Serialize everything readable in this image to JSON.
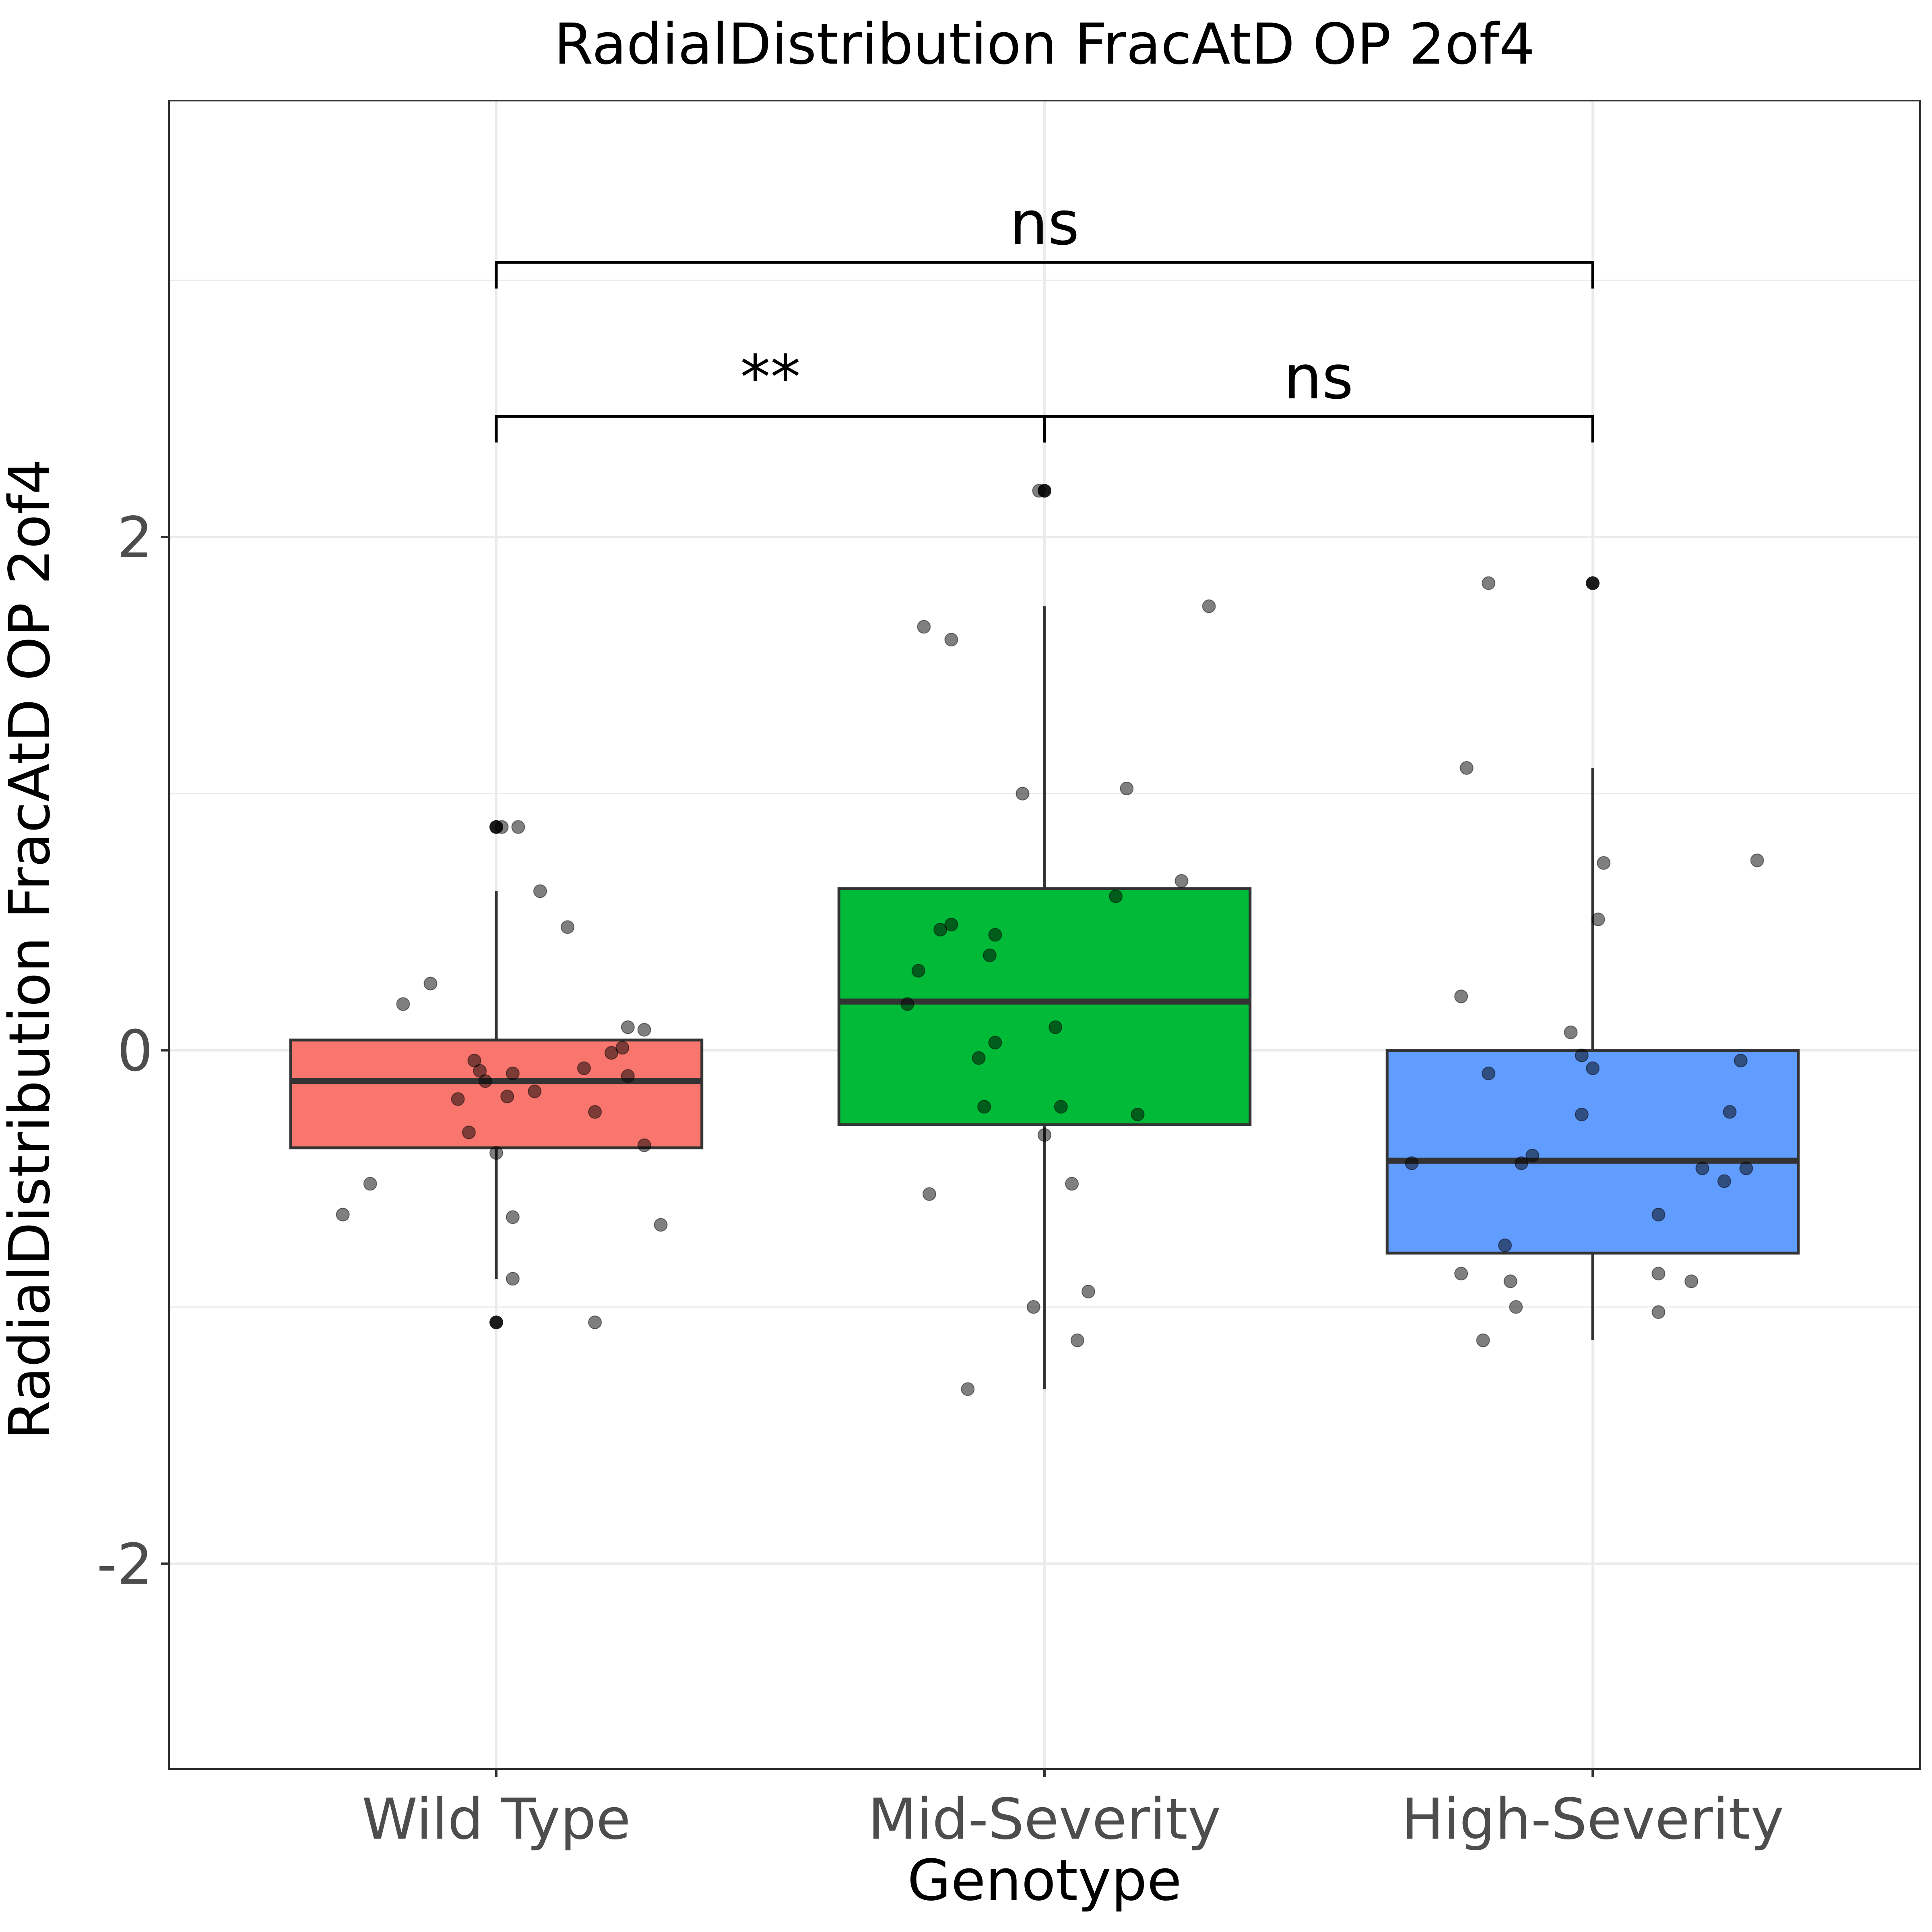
{
  "chart_data": {
    "type": "box",
    "title": "RadialDistribution FracAtD OP 2of4",
    "xlabel": "Genotype",
    "ylabel": "RadialDistribution FracAtD OP 2of4",
    "ylim": [
      -2.8,
      3.7
    ],
    "y_ticks": [
      -2,
      0,
      2
    ],
    "y_tick_labels": [
      "-2",
      "0",
      "2"
    ],
    "grid": true,
    "legend": "none",
    "categories": [
      "Wild Type",
      "Mid-Severity",
      "High-Severity"
    ],
    "colors": [
      "#f8766d",
      "#00ba38",
      "#619cff"
    ],
    "boxes": [
      {
        "q1": -0.38,
        "median": -0.12,
        "q3": 0.04,
        "whisker_low": -0.89,
        "whisker_high": 0.62
      },
      {
        "q1": -0.29,
        "median": 0.19,
        "q3": 0.63,
        "whisker_low": -1.32,
        "whisker_high": 1.73
      },
      {
        "q1": -0.79,
        "median": -0.43,
        "q3": 0.0,
        "whisker_low": -1.13,
        "whisker_high": 1.1
      }
    ],
    "outliers": [
      [
        0.87,
        -1.06
      ],
      [
        2.18
      ],
      [
        1.82
      ]
    ],
    "points": [
      [
        {
          "x": 0.72,
          "y": -0.64
        },
        {
          "x": 0.77,
          "y": -0.52
        },
        {
          "x": 0.83,
          "y": 0.18
        },
        {
          "x": 0.88,
          "y": 0.26
        },
        {
          "x": 0.93,
          "y": -0.19
        },
        {
          "x": 0.95,
          "y": -0.32
        },
        {
          "x": 0.96,
          "y": -0.04
        },
        {
          "x": 0.97,
          "y": -0.08
        },
        {
          "x": 0.98,
          "y": -0.12
        },
        {
          "x": 1.0,
          "y": -0.4
        },
        {
          "x": 1.02,
          "y": -0.18
        },
        {
          "x": 1.03,
          "y": -0.09
        },
        {
          "x": 1.01,
          "y": 0.87
        },
        {
          "x": 1.03,
          "y": -0.65
        },
        {
          "x": 1.03,
          "y": -0.89
        },
        {
          "x": 1.04,
          "y": 0.87
        },
        {
          "x": 1.07,
          "y": -0.16
        },
        {
          "x": 1.08,
          "y": 0.62
        },
        {
          "x": 1.16,
          "y": -0.07
        },
        {
          "x": 1.13,
          "y": 0.48
        },
        {
          "x": 1.18,
          "y": -0.24
        },
        {
          "x": 1.18,
          "y": -1.06
        },
        {
          "x": 1.21,
          "y": -0.01
        },
        {
          "x": 1.23,
          "y": 0.01
        },
        {
          "x": 1.24,
          "y": -0.1
        },
        {
          "x": 1.24,
          "y": 0.09
        },
        {
          "x": 1.27,
          "y": -0.37
        },
        {
          "x": 1.27,
          "y": 0.08
        },
        {
          "x": 1.3,
          "y": -0.68
        }
      ],
      [
        {
          "x": 1.75,
          "y": 0.18
        },
        {
          "x": 1.77,
          "y": 0.31
        },
        {
          "x": 1.78,
          "y": 1.65
        },
        {
          "x": 1.79,
          "y": -0.56
        },
        {
          "x": 1.81,
          "y": 0.47
        },
        {
          "x": 1.83,
          "y": 1.6
        },
        {
          "x": 1.83,
          "y": 0.49
        },
        {
          "x": 1.86,
          "y": -1.32
        },
        {
          "x": 1.88,
          "y": -0.03
        },
        {
          "x": 1.89,
          "y": -0.22
        },
        {
          "x": 1.9,
          "y": 0.37
        },
        {
          "x": 1.91,
          "y": 0.45
        },
        {
          "x": 1.91,
          "y": 0.03
        },
        {
          "x": 1.96,
          "y": 1.0
        },
        {
          "x": 1.98,
          "y": -1.0
        },
        {
          "x": 1.99,
          "y": 2.18
        },
        {
          "x": 2.0,
          "y": -0.33
        },
        {
          "x": 2.02,
          "y": 0.09
        },
        {
          "x": 2.03,
          "y": -0.22
        },
        {
          "x": 2.05,
          "y": -0.52
        },
        {
          "x": 2.06,
          "y": -1.13
        },
        {
          "x": 2.08,
          "y": -0.94
        },
        {
          "x": 2.13,
          "y": 0.6
        },
        {
          "x": 2.15,
          "y": 1.02
        },
        {
          "x": 2.17,
          "y": -0.25
        },
        {
          "x": 2.25,
          "y": 0.66
        },
        {
          "x": 2.3,
          "y": 1.73
        }
      ],
      [
        {
          "x": 2.67,
          "y": -0.44
        },
        {
          "x": 2.76,
          "y": -0.87
        },
        {
          "x": 2.76,
          "y": 0.21
        },
        {
          "x": 2.77,
          "y": 1.1
        },
        {
          "x": 2.8,
          "y": -1.13
        },
        {
          "x": 2.81,
          "y": 1.82
        },
        {
          "x": 2.81,
          "y": -0.09
        },
        {
          "x": 2.84,
          "y": -0.76
        },
        {
          "x": 2.85,
          "y": -0.9
        },
        {
          "x": 2.86,
          "y": -1.0
        },
        {
          "x": 2.87,
          "y": -0.44
        },
        {
          "x": 2.89,
          "y": -0.41
        },
        {
          "x": 2.96,
          "y": 0.07
        },
        {
          "x": 2.98,
          "y": -0.25
        },
        {
          "x": 2.98,
          "y": -0.02
        },
        {
          "x": 3.0,
          "y": -0.07
        },
        {
          "x": 3.01,
          "y": 0.51
        },
        {
          "x": 3.02,
          "y": 0.73
        },
        {
          "x": 3.12,
          "y": -0.64
        },
        {
          "x": 3.12,
          "y": -0.87
        },
        {
          "x": 3.12,
          "y": -1.02
        },
        {
          "x": 3.18,
          "y": -0.9
        },
        {
          "x": 3.2,
          "y": -0.46
        },
        {
          "x": 3.24,
          "y": -0.51
        },
        {
          "x": 3.25,
          "y": -0.24
        },
        {
          "x": 3.27,
          "y": -0.04
        },
        {
          "x": 3.28,
          "y": -0.46
        },
        {
          "x": 3.3,
          "y": 0.74
        }
      ]
    ],
    "comparisons": [
      {
        "groups": [
          1,
          3
        ],
        "label": "ns",
        "y": 3.07
      },
      {
        "groups": [
          1,
          2
        ],
        "label": "**",
        "y": 2.47
      },
      {
        "groups": [
          2,
          3
        ],
        "label": "ns",
        "y": 2.47
      }
    ]
  }
}
